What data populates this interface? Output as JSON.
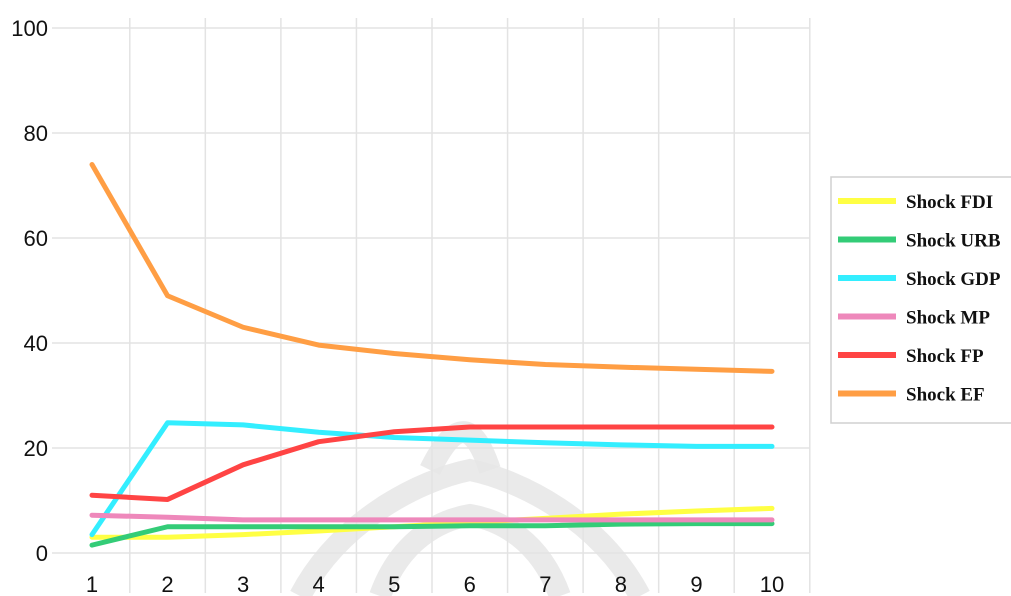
{
  "chart_data": {
    "type": "line",
    "title": "",
    "xlabel": "",
    "ylabel": "",
    "x": [
      1,
      2,
      3,
      4,
      5,
      6,
      7,
      8,
      9,
      10
    ],
    "x_tick_labels": [
      "1",
      "2",
      "3",
      "4",
      "5",
      "6",
      "7",
      "8",
      "9",
      "10"
    ],
    "ylim": [
      0,
      100
    ],
    "y_ticks": [
      0,
      20,
      40,
      60,
      80,
      100
    ],
    "y_tick_labels": [
      "0",
      "20",
      "40",
      "60",
      "80",
      "100"
    ],
    "grid": "vertical",
    "legend_position": "right",
    "series": [
      {
        "name": "Shock FDI",
        "color": "#ffff44",
        "values": [
          3.0,
          3.0,
          3.5,
          4.2,
          5.0,
          5.8,
          6.6,
          7.4,
          8.0,
          8.5
        ]
      },
      {
        "name": "Shock URB",
        "color": "#33cc77",
        "values": [
          1.5,
          5.0,
          5.0,
          5.0,
          5.0,
          5.2,
          5.2,
          5.5,
          5.6,
          5.6
        ]
      },
      {
        "name": "Shock GDP",
        "color": "#33eeff",
        "values": [
          3.5,
          24.8,
          24.4,
          23.0,
          22.0,
          21.5,
          21.0,
          20.6,
          20.3,
          20.3
        ]
      },
      {
        "name": "Shock MP",
        "color": "#ee88bb",
        "values": [
          7.2,
          6.8,
          6.3,
          6.3,
          6.3,
          6.3,
          6.3,
          6.3,
          6.3,
          6.3
        ]
      },
      {
        "name": "Shock FP",
        "color": "#ff4444",
        "values": [
          11.0,
          10.2,
          16.8,
          21.2,
          23.1,
          24.0,
          24.0,
          24.0,
          24.0,
          24.0
        ]
      },
      {
        "name": "Shock EF",
        "color": "#ff9e44",
        "values": [
          74.0,
          49.0,
          43.0,
          39.6,
          38.0,
          36.8,
          35.9,
          35.4,
          35.0,
          34.6
        ]
      }
    ]
  }
}
